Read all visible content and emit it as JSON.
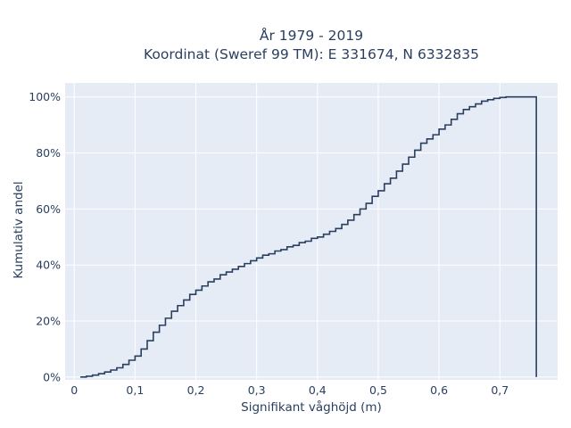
{
  "chart_data": {
    "type": "line",
    "line_shape": "step-cumulative",
    "title_line1": "År 1979 - 2019",
    "title_line2": "Koordinat (Sweref 99 TM): E 331674, N 6332835",
    "xlabel": "Signifikant våghöjd (m)",
    "ylabel": "Kumulativ andel",
    "xlim": [
      -0.015,
      0.795
    ],
    "ylim": [
      -0.01,
      1.05
    ],
    "x_ticks": [
      0,
      0.1,
      0.2,
      0.3,
      0.4,
      0.5,
      0.6,
      0.7
    ],
    "x_tick_labels": [
      "0",
      "0,1",
      "0,2",
      "0,3",
      "0,4",
      "0,5",
      "0,6",
      "0,7"
    ],
    "y_ticks": [
      0,
      0.2,
      0.4,
      0.6,
      0.8,
      1.0
    ],
    "y_tick_labels": [
      "0%",
      "20%",
      "40%",
      "60%",
      "80%",
      "100%"
    ],
    "grid": true,
    "colors": {
      "line": "#2a3f5f",
      "plot_bg": "#e5ecf6",
      "grid": "#ffffff",
      "text": "#2a3f5f"
    },
    "series": [
      {
        "x": [
          0.01,
          0.02,
          0.03,
          0.04,
          0.05,
          0.06,
          0.07,
          0.08,
          0.09,
          0.1,
          0.11,
          0.12,
          0.13,
          0.14,
          0.15,
          0.16,
          0.17,
          0.18,
          0.19,
          0.2,
          0.21,
          0.22,
          0.23,
          0.24,
          0.25,
          0.26,
          0.27,
          0.28,
          0.29,
          0.3,
          0.31,
          0.32,
          0.33,
          0.34,
          0.35,
          0.36,
          0.37,
          0.38,
          0.39,
          0.4,
          0.41,
          0.42,
          0.43,
          0.44,
          0.45,
          0.46,
          0.47,
          0.48,
          0.49,
          0.5,
          0.51,
          0.52,
          0.53,
          0.54,
          0.55,
          0.56,
          0.57,
          0.58,
          0.59,
          0.6,
          0.61,
          0.62,
          0.63,
          0.64,
          0.65,
          0.66,
          0.67,
          0.68,
          0.69,
          0.7,
          0.71,
          0.72,
          0.73,
          0.74,
          0.75,
          0.76
        ],
        "y": [
          0.0,
          0.003,
          0.007,
          0.012,
          0.018,
          0.025,
          0.033,
          0.045,
          0.06,
          0.075,
          0.1,
          0.13,
          0.16,
          0.185,
          0.21,
          0.235,
          0.255,
          0.275,
          0.295,
          0.31,
          0.325,
          0.34,
          0.35,
          0.365,
          0.375,
          0.385,
          0.395,
          0.405,
          0.415,
          0.425,
          0.435,
          0.44,
          0.45,
          0.455,
          0.465,
          0.47,
          0.48,
          0.485,
          0.495,
          0.5,
          0.51,
          0.52,
          0.53,
          0.545,
          0.56,
          0.58,
          0.6,
          0.62,
          0.645,
          0.665,
          0.69,
          0.71,
          0.735,
          0.76,
          0.785,
          0.81,
          0.835,
          0.85,
          0.865,
          0.885,
          0.9,
          0.92,
          0.94,
          0.955,
          0.965,
          0.975,
          0.985,
          0.99,
          0.995,
          0.998,
          1.0,
          1.0,
          1.0,
          1.0,
          1.0,
          1.0
        ],
        "end_drop_to": 0
      }
    ]
  }
}
